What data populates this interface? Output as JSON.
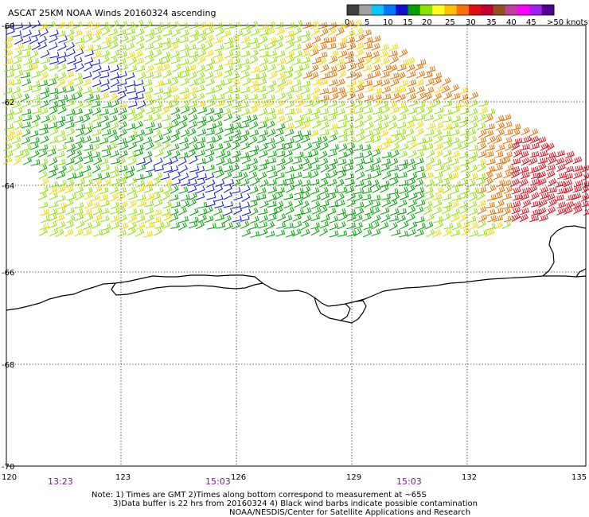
{
  "header": {
    "title": "ASCAT 25KM NOAA Winds 20160324 ascending"
  },
  "legend": {
    "colors": [
      "#404040",
      "#a0a0a0",
      "#00c8ff",
      "#0078ff",
      "#1010d0",
      "#00a000",
      "#90e000",
      "#ffff20",
      "#ffc000",
      "#ff7000",
      "#e01010",
      "#c00030",
      "#905020",
      "#c040a0",
      "#ff00ff",
      "#a020f0",
      "#500090"
    ],
    "labels": [
      "0",
      "5",
      "10",
      "15",
      "20",
      "25",
      "30",
      "35",
      "40",
      "45",
      ">50 knots"
    ]
  },
  "axes": {
    "lat_labels": [
      "-60",
      "-62",
      "-64",
      "-66",
      "-68",
      "-70"
    ],
    "lon_labels": [
      "120",
      "123",
      "126",
      "129",
      "132",
      "135"
    ]
  },
  "times": [
    "13:23",
    "15:03",
    "15:03"
  ],
  "notes": {
    "line1": "Note: 1) Times are GMT 2)Times along bottom correspond to measurement at ~65S",
    "line2": "3)Data buffer is 22 hrs from 20160324 4) Black wind barbs indicate possible contamination",
    "line3": "NOAA/NESDIS/Center for Satellite Applications and Research"
  },
  "map_data": {
    "lon_range": [
      120,
      135
    ],
    "lat_range": [
      -70,
      -60
    ],
    "speed_colors": [
      {
        "max": 5,
        "color": "#a0a0a0"
      },
      {
        "max": 10,
        "color": "#00c8ff"
      },
      {
        "max": 15,
        "color": "#1010d0"
      },
      {
        "max": 20,
        "color": "#00a000"
      },
      {
        "max": 25,
        "color": "#90e000"
      },
      {
        "max": 30,
        "color": "#f0d800"
      },
      {
        "max": 35,
        "color": "#e07000"
      },
      {
        "max": 40,
        "color": "#d01020"
      }
    ]
  }
}
